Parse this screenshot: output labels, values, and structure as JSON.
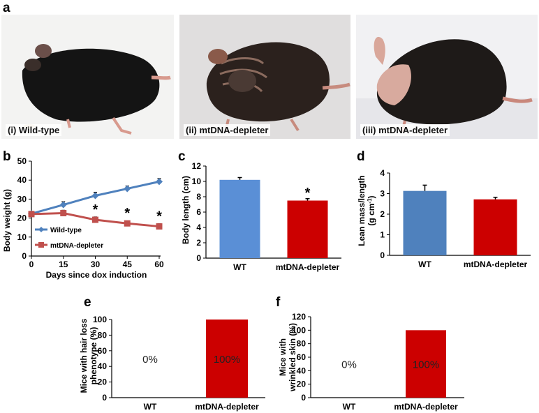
{
  "figure": {
    "panel_letters": {
      "a": "a",
      "b": "b",
      "c": "c",
      "d": "d",
      "e": "e",
      "f": "f"
    },
    "photos": [
      {
        "label": "(i) Wild-type",
        "subject": "wild-type-mouse"
      },
      {
        "label": "(ii) mtDNA-depleter",
        "subject": "wrinkled-mouse"
      },
      {
        "label": "(iii) mtDNA-depleter",
        "subject": "hair-loss-mouse"
      }
    ],
    "colors": {
      "wt": "#4F81BD",
      "wt_bar": "#5A8FD6",
      "depleter": "#C0504D",
      "depleter_bar": "#CC0000",
      "axis": "#000000"
    }
  },
  "chart_data": [
    {
      "id": "b",
      "type": "line",
      "title": "",
      "xlabel": "Days since dox induction",
      "ylabel": "Body weight (g)",
      "x": [
        0,
        15,
        30,
        45,
        60
      ],
      "xticks": [
        "0",
        "15",
        "30",
        "45",
        "60"
      ],
      "yticks": [
        "0",
        "10",
        "20",
        "30",
        "40",
        "50"
      ],
      "ylim": [
        0,
        50
      ],
      "xlim": [
        0,
        60
      ],
      "series": [
        {
          "name": "Wild-type",
          "values": [
            22.3,
            27,
            31.8,
            35.5,
            39.2
          ],
          "errors": [
            1.2,
            1.6,
            1.8,
            1.4,
            1.6
          ],
          "color": "#4F81BD",
          "marker": "diamond"
        },
        {
          "name": "mtDNA-depleter",
          "values": [
            22.1,
            22.6,
            19.1,
            17.2,
            15.6
          ],
          "errors": [
            1.4,
            1.5,
            1.5,
            1.3,
            1.4
          ],
          "color": "#C0504D",
          "marker": "square"
        }
      ],
      "significance": [
        {
          "x": 30,
          "mark": "*"
        },
        {
          "x": 45,
          "mark": "*"
        },
        {
          "x": 60,
          "mark": "*"
        }
      ],
      "legend": "bottom-left"
    },
    {
      "id": "c",
      "type": "bar",
      "title": "",
      "ylabel": "Body length (cm)",
      "categories": [
        "WT",
        "mtDNA-depleter"
      ],
      "values": [
        10.2,
        7.5
      ],
      "errors": [
        0.3,
        0.25
      ],
      "colors": [
        "#5A8FD6",
        "#CC0000"
      ],
      "yticks": [
        "0",
        "2",
        "4",
        "6",
        "8",
        "10",
        "12"
      ],
      "ylim": [
        0,
        12
      ],
      "significance": [
        {
          "category": "mtDNA-depleter",
          "mark": "*"
        }
      ]
    },
    {
      "id": "d",
      "type": "bar",
      "title": "",
      "ylabel_line1": "Lean mass/length",
      "ylabel_line2": "(g cm",
      "ylabel_sup": "-1",
      "ylabel_close": ")",
      "categories": [
        "WT",
        "mtDNA-depleter"
      ],
      "values": [
        3.13,
        2.72
      ],
      "errors": [
        0.28,
        0.1
      ],
      "colors": [
        "#4F81BD",
        "#CC0000"
      ],
      "yticks": [
        "0",
        "1",
        "2",
        "3",
        "4"
      ],
      "ylim": [
        0,
        4
      ]
    },
    {
      "id": "e",
      "type": "bar",
      "title": "",
      "ylabel_line1": "Mice with hair loss",
      "ylabel_line2": "phenotype (%)",
      "categories": [
        "WT",
        "mtDNA-depleter"
      ],
      "values": [
        0,
        100
      ],
      "data_labels": [
        "0%",
        "100%"
      ],
      "colors": [
        "#CC0000",
        "#CC0000"
      ],
      "yticks": [
        "0",
        "20",
        "40",
        "60",
        "80",
        "100"
      ],
      "ylim": [
        0,
        100
      ]
    },
    {
      "id": "f",
      "type": "bar",
      "title": "",
      "ylabel_line1": "Mice with",
      "ylabel_line2": "wrinkled skin  (%)",
      "categories": [
        "WT",
        "mtDNA-depleter"
      ],
      "values": [
        0,
        100
      ],
      "data_labels": [
        "0%",
        "100%"
      ],
      "colors": [
        "#CC0000",
        "#CC0000"
      ],
      "yticks": [
        "0",
        "20",
        "40",
        "60",
        "80",
        "100",
        "120"
      ],
      "ylim": [
        0,
        120
      ]
    }
  ]
}
